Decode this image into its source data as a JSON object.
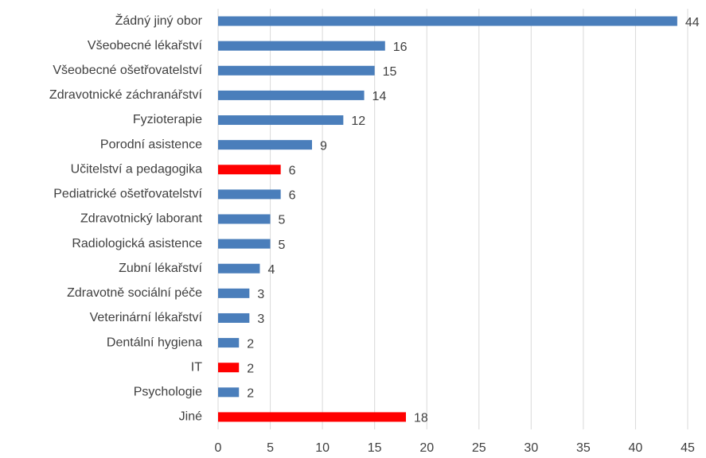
{
  "chart_data": {
    "type": "barh",
    "categories": [
      "Žádný jiný obor",
      "Všeobecné lékařství",
      "Všeobecné ošetřovatelství",
      "Zdravotnické záchranářství",
      "Fyzioterapie",
      "Porodní asistence",
      "Učitelství a pedagogika",
      "Pediatrické ošetřovatelství",
      "Zdravotnický laborant",
      "Radiologická asistence",
      "Zubní lékařství",
      "Zdravotně sociální péče",
      "Veterinární lékařství",
      "Dentální hygiena",
      "IT",
      "Psychologie",
      "Jiné"
    ],
    "values": [
      44,
      16,
      15,
      14,
      12,
      9,
      6,
      6,
      5,
      5,
      4,
      3,
      3,
      2,
      2,
      2,
      18
    ],
    "colors": [
      "#4a7ebb",
      "#4a7ebb",
      "#4a7ebb",
      "#4a7ebb",
      "#4a7ebb",
      "#4a7ebb",
      "#ff0000",
      "#4a7ebb",
      "#4a7ebb",
      "#4a7ebb",
      "#4a7ebb",
      "#4a7ebb",
      "#4a7ebb",
      "#4a7ebb",
      "#ff0000",
      "#4a7ebb",
      "#ff0000"
    ],
    "xlim": [
      0,
      45
    ],
    "xticks": [
      0,
      5,
      10,
      15,
      20,
      25,
      30,
      35,
      40,
      45
    ],
    "grid": true
  }
}
